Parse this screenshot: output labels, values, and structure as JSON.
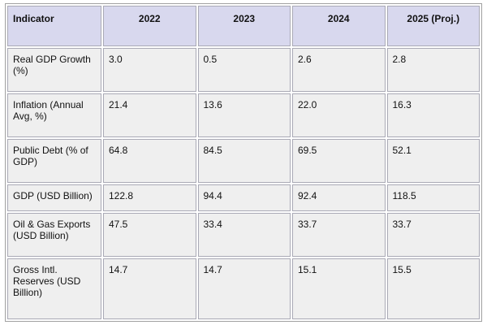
{
  "table": {
    "header": [
      "Indicator",
      "2022",
      "2023",
      "2024",
      "2025 (Proj.)"
    ],
    "rows": [
      [
        "Real GDP Growth (%)",
        "3.0",
        "0.5",
        "2.6",
        "2.8"
      ],
      [
        "Inflation (Annual Avg, %)",
        "21.4",
        "13.6",
        "22.0",
        "16.3"
      ],
      [
        "Public Debt (% of GDP)",
        "64.8",
        "84.5",
        "69.5",
        "52.1"
      ],
      [
        "GDP (USD Billion)",
        "122.8",
        "94.4",
        "92.4",
        "118.5"
      ],
      [
        "Oil & Gas Exports (USD Billion)",
        "47.5",
        "33.4",
        "33.7",
        "33.7"
      ],
      [
        "Gross Intl. Reserves (USD Billion)",
        "14.7",
        "14.7",
        "15.1",
        "15.5"
      ]
    ]
  }
}
